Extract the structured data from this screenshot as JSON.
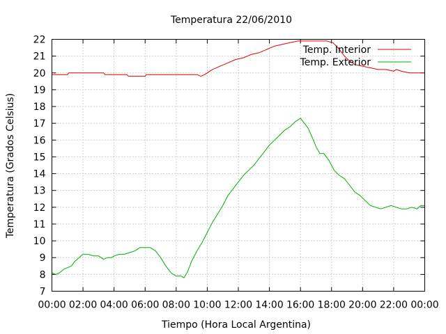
{
  "chart_data": {
    "type": "line",
    "title": "Temperatura 22/06/2010",
    "xlabel": "Tiempo (Hora Local Argentina)",
    "ylabel": "Temperatura (Grados Celsius)",
    "xlim": [
      "00:00",
      "24:00"
    ],
    "ylim": [
      7,
      22
    ],
    "x_ticks": [
      "00:00",
      "02:00",
      "04:00",
      "06:00",
      "08:00",
      "10:00",
      "12:00",
      "14:00",
      "16:00",
      "18:00",
      "20:00",
      "22:00",
      "00:00"
    ],
    "y_ticks": [
      7,
      8,
      9,
      10,
      11,
      12,
      13,
      14,
      15,
      16,
      17,
      18,
      19,
      20,
      21,
      22
    ],
    "grid": true,
    "legend_position": "top-right",
    "series": [
      {
        "name": "Temp. Interior",
        "color": "#e00000",
        "points": [
          [
            "00:00",
            19.9
          ],
          [
            "01:00",
            19.9
          ],
          [
            "01:05",
            20.0
          ],
          [
            "03:20",
            20.0
          ],
          [
            "03:25",
            19.9
          ],
          [
            "04:50",
            19.9
          ],
          [
            "04:55",
            19.8
          ],
          [
            "06:00",
            19.8
          ],
          [
            "06:05",
            19.9
          ],
          [
            "09:20",
            19.9
          ],
          [
            "09:35",
            19.8
          ],
          [
            "09:50",
            19.9
          ],
          [
            "10:20",
            20.2
          ],
          [
            "10:50",
            20.4
          ],
          [
            "11:20",
            20.6
          ],
          [
            "11:50",
            20.8
          ],
          [
            "12:20",
            20.9
          ],
          [
            "12:50",
            21.1
          ],
          [
            "13:20",
            21.2
          ],
          [
            "13:50",
            21.4
          ],
          [
            "14:20",
            21.6
          ],
          [
            "14:50",
            21.7
          ],
          [
            "15:20",
            21.8
          ],
          [
            "15:50",
            21.9
          ],
          [
            "16:20",
            21.9
          ],
          [
            "17:00",
            21.9
          ],
          [
            "17:40",
            21.9
          ],
          [
            "18:05",
            21.8
          ],
          [
            "18:25",
            21.5
          ],
          [
            "18:50",
            21.0
          ],
          [
            "19:10",
            20.7
          ],
          [
            "19:30",
            20.5
          ],
          [
            "20:00",
            20.4
          ],
          [
            "20:30",
            20.3
          ],
          [
            "21:00",
            20.2
          ],
          [
            "21:30",
            20.2
          ],
          [
            "22:00",
            20.1
          ],
          [
            "22:10",
            20.2
          ],
          [
            "22:30",
            20.1
          ],
          [
            "23:00",
            20.0
          ],
          [
            "24:00",
            20.0
          ]
        ]
      },
      {
        "name": "Temp. Exterior",
        "color": "#00b000",
        "points": [
          [
            "00:00",
            8.1
          ],
          [
            "00:15",
            8.0
          ],
          [
            "00:30",
            8.1
          ],
          [
            "00:45",
            8.3
          ],
          [
            "01:00",
            8.4
          ],
          [
            "01:15",
            8.5
          ],
          [
            "01:30",
            8.8
          ],
          [
            "01:45",
            9.0
          ],
          [
            "02:00",
            9.2
          ],
          [
            "02:20",
            9.2
          ],
          [
            "02:40",
            9.1
          ],
          [
            "03:00",
            9.1
          ],
          [
            "03:20",
            8.9
          ],
          [
            "03:35",
            9.0
          ],
          [
            "03:50",
            9.0
          ],
          [
            "04:00",
            9.1
          ],
          [
            "04:20",
            9.2
          ],
          [
            "04:40",
            9.2
          ],
          [
            "05:00",
            9.3
          ],
          [
            "05:20",
            9.4
          ],
          [
            "05:40",
            9.6
          ],
          [
            "06:00",
            9.6
          ],
          [
            "06:20",
            9.6
          ],
          [
            "06:40",
            9.4
          ],
          [
            "07:00",
            9.0
          ],
          [
            "07:20",
            8.5
          ],
          [
            "07:40",
            8.1
          ],
          [
            "08:00",
            7.9
          ],
          [
            "08:20",
            7.9
          ],
          [
            "08:30",
            7.8
          ],
          [
            "08:45",
            8.2
          ],
          [
            "09:00",
            8.8
          ],
          [
            "09:20",
            9.4
          ],
          [
            "09:40",
            9.9
          ],
          [
            "10:00",
            10.5
          ],
          [
            "10:20",
            11.1
          ],
          [
            "10:40",
            11.6
          ],
          [
            "11:00",
            12.1
          ],
          [
            "11:20",
            12.7
          ],
          [
            "11:40",
            13.1
          ],
          [
            "12:00",
            13.5
          ],
          [
            "12:20",
            13.9
          ],
          [
            "12:40",
            14.2
          ],
          [
            "13:00",
            14.5
          ],
          [
            "13:20",
            14.9
          ],
          [
            "13:40",
            15.3
          ],
          [
            "14:00",
            15.7
          ],
          [
            "14:20",
            16.0
          ],
          [
            "14:40",
            16.3
          ],
          [
            "15:00",
            16.6
          ],
          [
            "15:20",
            16.8
          ],
          [
            "15:40",
            17.1
          ],
          [
            "16:00",
            17.3
          ],
          [
            "16:10",
            17.1
          ],
          [
            "16:30",
            16.7
          ],
          [
            "16:50",
            16.0
          ],
          [
            "17:00",
            15.6
          ],
          [
            "17:15",
            15.2
          ],
          [
            "17:30",
            15.2
          ],
          [
            "17:50",
            14.8
          ],
          [
            "18:10",
            14.2
          ],
          [
            "18:30",
            13.9
          ],
          [
            "18:50",
            13.7
          ],
          [
            "19:10",
            13.3
          ],
          [
            "19:30",
            12.9
          ],
          [
            "19:50",
            12.7
          ],
          [
            "20:10",
            12.4
          ],
          [
            "20:30",
            12.1
          ],
          [
            "20:50",
            12.0
          ],
          [
            "21:10",
            11.9
          ],
          [
            "21:30",
            12.0
          ],
          [
            "21:50",
            12.1
          ],
          [
            "22:10",
            12.0
          ],
          [
            "22:30",
            11.9
          ],
          [
            "22:50",
            11.9
          ],
          [
            "23:10",
            12.0
          ],
          [
            "23:30",
            11.9
          ],
          [
            "23:45",
            12.1
          ],
          [
            "24:00",
            12.1
          ]
        ]
      }
    ]
  }
}
